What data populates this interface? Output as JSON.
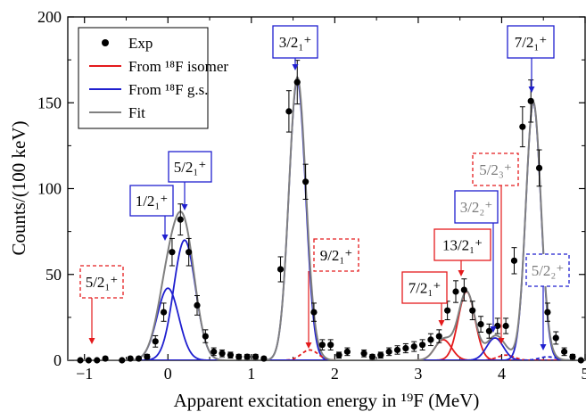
{
  "chart_data": {
    "type": "scatter",
    "xlabel": "Apparent excitation energy in ¹⁹F (MeV)",
    "ylabel": "Counts/(100 keV)",
    "xlim": [
      -1.2,
      5.0
    ],
    "ylim": [
      0,
      200
    ],
    "xticks": [
      -1,
      0,
      1,
      2,
      3,
      4,
      5
    ],
    "yticks": [
      0,
      50,
      100,
      150,
      200
    ],
    "grid": false,
    "legend": {
      "placement": "top-left",
      "entries": [
        {
          "label": "Exp",
          "style": "marker",
          "color": "#000000"
        },
        {
          "label": "From ¹⁸F isomer",
          "style": "line",
          "color": "#e41a1c"
        },
        {
          "label": "From ¹⁸F g.s.",
          "style": "line",
          "color": "#1f1fcf"
        },
        {
          "label": "Fit",
          "style": "line",
          "color": "#808080"
        }
      ]
    },
    "colors": {
      "exp": "#000000",
      "isomer": "#e41a1c",
      "gs": "#1f1fcf",
      "fit": "#808080",
      "axis": "#000000"
    },
    "series": [
      {
        "name": "Exp",
        "x": [
          -1.05,
          -0.95,
          -0.85,
          -0.75,
          -0.55,
          -0.45,
          -0.35,
          -0.25,
          -0.15,
          -0.05,
          0.05,
          0.15,
          0.25,
          0.35,
          0.45,
          0.55,
          0.65,
          0.75,
          0.85,
          0.95,
          1.05,
          1.15,
          1.35,
          1.45,
          1.55,
          1.65,
          1.75,
          1.85,
          1.95,
          2.05,
          2.15,
          2.35,
          2.45,
          2.55,
          2.65,
          2.75,
          2.85,
          2.95,
          3.05,
          3.15,
          3.25,
          3.35,
          3.45,
          3.55,
          3.65,
          3.75,
          3.85,
          3.95,
          4.05,
          4.15,
          4.25,
          4.35,
          4.45,
          4.55,
          4.65,
          4.75,
          4.85,
          4.95
        ],
        "y": [
          0,
          0,
          0,
          1,
          0,
          1,
          1,
          2,
          11,
          28,
          63,
          82,
          63,
          32,
          14,
          5,
          4,
          3,
          2,
          2,
          2,
          1,
          53,
          145,
          162,
          104,
          28,
          9,
          9,
          3,
          5,
          4,
          2,
          3,
          5,
          6,
          7,
          8,
          9,
          12,
          14,
          29,
          40,
          41,
          29,
          21,
          17,
          20,
          20,
          58,
          136,
          151,
          112,
          28,
          13,
          5,
          2,
          0
        ]
      }
    ],
    "peaks": [
      {
        "label": "5/2₁⁺",
        "source": "isomer",
        "box": "dashed",
        "x": -0.9,
        "amplitude": 0,
        "sigma": 0
      },
      {
        "label": "1/2₁⁺",
        "source": "gs",
        "box": "solid",
        "x": 0.0,
        "amplitude": 42,
        "sigma": 0.13
      },
      {
        "label": "5/2₁⁺",
        "source": "gs",
        "box": "solid",
        "x": 0.2,
        "amplitude": 70,
        "sigma": 0.13
      },
      {
        "label": "3/2₁⁺",
        "source": "gs",
        "box": "solid",
        "x": 1.55,
        "amplitude": 163,
        "sigma": 0.1
      },
      {
        "label": "9/2₁⁺",
        "source": "isomer",
        "box": "dashed",
        "x": 1.7,
        "amplitude": 6,
        "sigma": 0.1
      },
      {
        "label": "7/2₁⁺",
        "source": "isomer",
        "box": "solid",
        "x": 3.3,
        "amplitude": 12,
        "sigma": 0.1
      },
      {
        "label": "13/2₁⁺",
        "source": "isomer",
        "box": "solid",
        "x": 3.58,
        "amplitude": 40,
        "sigma": 0.1
      },
      {
        "label": "3/2₂⁺",
        "source": "gs",
        "box": "solid",
        "x": 3.92,
        "amplitude": 13,
        "sigma": 0.1
      },
      {
        "label": "5/2₃⁺",
        "source": "isomer",
        "box": "dashed",
        "x": 4.05,
        "amplitude": 3,
        "sigma": 0.1
      },
      {
        "label": "7/2₁⁺",
        "source": "gs",
        "box": "solid",
        "x": 4.38,
        "amplitude": 150,
        "sigma": 0.09
      },
      {
        "label": "5/2₂⁺",
        "source": "gs",
        "box": "dashed",
        "x": 4.55,
        "amplitude": 2,
        "sigma": 0.1
      }
    ]
  }
}
